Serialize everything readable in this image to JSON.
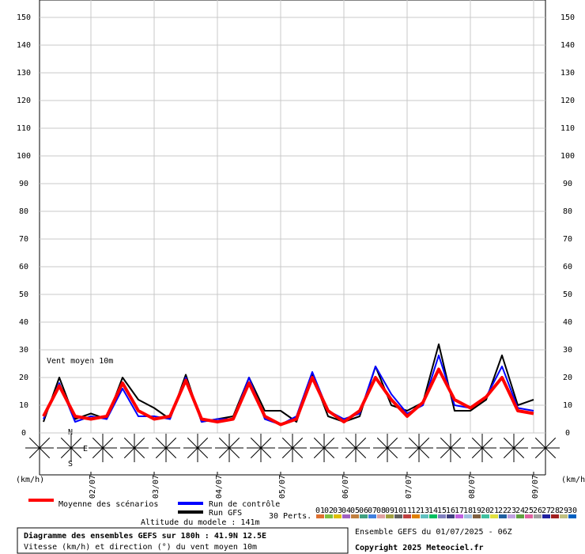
{
  "chart_data": {
    "type": "line",
    "title": "Diagramme des ensembles GEFS sur 180h : 41.9N 12.5E",
    "subtitle": "Vitesse (km/h) et direction (°) du vent moyen 10m",
    "annotation": "Vent moyen 10m",
    "y_label": "(km/h)",
    "y2_label": "(km/h)",
    "run_label": "Ensemble GEFS du 01/07/2025 - 06Z",
    "altitude": "Altitude du modele : 141m",
    "perts_label": "30 Perts.",
    "copyright": "Copyright 2025 Meteociel.fr",
    "compass": [
      "N",
      "E",
      "S"
    ],
    "x": [
      6,
      12,
      18,
      24,
      30,
      36,
      42,
      48,
      54,
      60,
      66,
      72,
      78,
      84,
      90,
      96,
      102,
      108,
      114,
      120,
      126,
      132,
      138,
      144,
      150,
      156,
      162,
      168,
      174,
      180,
      186,
      192
    ],
    "xlim": [
      4.5,
      196.5
    ],
    "xticks": [
      {
        "value": 24,
        "label": "02/07"
      },
      {
        "value": 48,
        "label": "03/07"
      },
      {
        "value": 72,
        "label": "04/07"
      },
      {
        "value": 96,
        "label": "05/07"
      },
      {
        "value": 120,
        "label": "06/07"
      },
      {
        "value": 144,
        "label": "07/07"
      },
      {
        "value": 168,
        "label": "08/07"
      },
      {
        "value": 192,
        "label": "09/07"
      }
    ],
    "ylim": [
      0,
      150
    ],
    "yticks": [
      0,
      10,
      20,
      30,
      40,
      50,
      60,
      70,
      80,
      90,
      100,
      110,
      120,
      130,
      140,
      150
    ],
    "grid": true,
    "series": [
      {
        "name": "Run GFS",
        "color": "#000000",
        "values": [
          4,
          20,
          5,
          7,
          5,
          20,
          12,
          9,
          5,
          21,
          4,
          5,
          6,
          20,
          8,
          8,
          4,
          21,
          6,
          4,
          6,
          24,
          10,
          8,
          11,
          32,
          8,
          8,
          12,
          28,
          10,
          12
        ]
      },
      {
        "name": "Run de contrôle",
        "color": "#0000ff",
        "values": [
          5,
          18,
          4,
          6,
          5,
          16,
          6,
          6,
          5,
          20,
          4,
          5,
          5,
          20,
          5,
          3,
          6,
          22,
          8,
          5,
          7,
          24,
          14,
          7,
          10,
          28,
          10,
          9,
          13,
          24,
          9,
          8
        ]
      },
      {
        "name": "Moyenne des scénarios",
        "color": "#ff0000",
        "values": [
          6,
          17,
          6,
          5,
          6,
          18,
          8,
          5,
          6,
          19,
          5,
          4,
          5,
          18,
          6,
          3,
          5,
          20,
          8,
          4,
          8,
          20,
          12,
          6,
          11,
          23,
          12,
          9,
          13,
          20,
          8,
          7
        ]
      }
    ],
    "perturbations": [
      {
        "label": "01",
        "color": "#e07030"
      },
      {
        "label": "02",
        "color": "#80c040"
      },
      {
        "label": "03",
        "color": "#e0c000"
      },
      {
        "label": "04",
        "color": "#a060c0"
      },
      {
        "label": "05",
        "color": "#c08040"
      },
      {
        "label": "06",
        "color": "#40a080"
      },
      {
        "label": "07",
        "color": "#4080e0"
      },
      {
        "label": "08",
        "color": "#e0a0a0"
      },
      {
        "label": "09",
        "color": "#a0a040"
      },
      {
        "label": "10",
        "color": "#606060"
      },
      {
        "label": "11",
        "color": "#c04040"
      },
      {
        "label": "12",
        "color": "#e08000"
      },
      {
        "label": "13",
        "color": "#60c0c0"
      },
      {
        "label": "14",
        "color": "#00c060"
      },
      {
        "label": "15",
        "color": "#8080c0"
      },
      {
        "label": "16",
        "color": "#404080"
      },
      {
        "label": "17",
        "color": "#c060e0"
      },
      {
        "label": "18",
        "color": "#a0c0e0"
      },
      {
        "label": "19",
        "color": "#806040"
      },
      {
        "label": "20",
        "color": "#40c0a0"
      },
      {
        "label": "21",
        "color": "#e0e040"
      },
      {
        "label": "22",
        "color": "#2060a0"
      },
      {
        "label": "23",
        "color": "#c0a0e0"
      },
      {
        "label": "24",
        "color": "#60a040"
      },
      {
        "label": "25",
        "color": "#e060a0"
      },
      {
        "label": "26",
        "color": "#a0a0a0"
      },
      {
        "label": "27",
        "color": "#2020a0"
      },
      {
        "label": "28",
        "color": "#a02020"
      },
      {
        "label": "29",
        "color": "#c0c080"
      },
      {
        "label": "30",
        "color": "#0060c0"
      }
    ]
  }
}
